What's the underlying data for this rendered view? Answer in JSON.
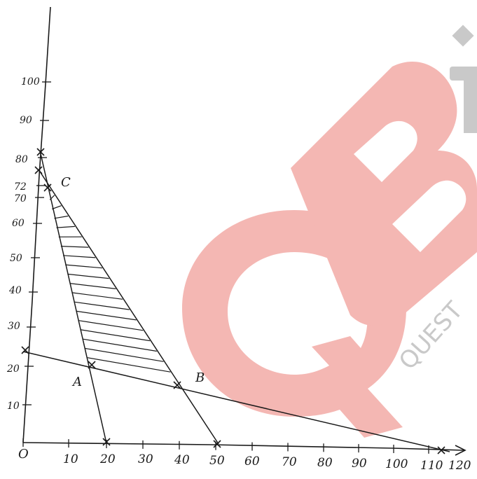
{
  "graph": {
    "origin_label": "O",
    "x_ticks": [
      "10",
      "20",
      "30",
      "40",
      "50",
      "60",
      "70",
      "80",
      "90",
      "100",
      "110",
      "120"
    ],
    "y_ticks": [
      "10",
      "20",
      "30",
      "40",
      "50",
      "60",
      "70",
      "72",
      "80",
      "90",
      "100"
    ],
    "points": {
      "A": "A",
      "B": "B",
      "C": "C"
    }
  },
  "watermark": {
    "logo_text": "QB",
    "caption": "QUEST"
  },
  "colors": {
    "ink": "#1a1a1a",
    "watermark_red": "#f4b7b3",
    "watermark_grey": "#c9c9c9"
  }
}
